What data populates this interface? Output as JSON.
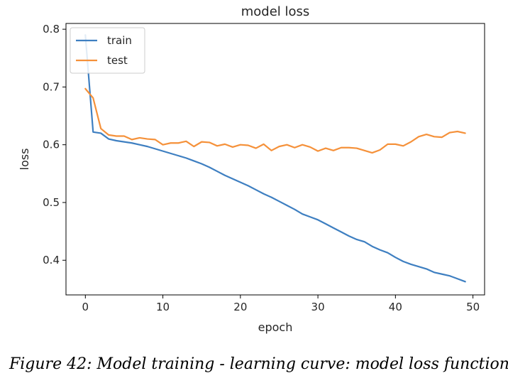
{
  "chart_data": {
    "type": "line",
    "title": "model loss",
    "xlabel": "epoch",
    "ylabel": "loss",
    "xlim": [
      -2.5,
      51.5
    ],
    "ylim": [
      0.34,
      0.81
    ],
    "xticks": [
      0,
      10,
      20,
      30,
      40,
      50
    ],
    "yticks": [
      0.4,
      0.5,
      0.6,
      0.7,
      0.8
    ],
    "xtick_labels": [
      "0",
      "10",
      "20",
      "30",
      "40",
      "50"
    ],
    "ytick_labels": [
      "0.4",
      "0.5",
      "0.6",
      "0.7",
      "0.8"
    ],
    "grid": false,
    "legend_position": "upper left",
    "x": [
      0,
      1,
      2,
      3,
      4,
      5,
      6,
      7,
      8,
      9,
      10,
      11,
      12,
      13,
      14,
      15,
      16,
      17,
      18,
      19,
      20,
      21,
      22,
      23,
      24,
      25,
      26,
      27,
      28,
      29,
      30,
      31,
      32,
      33,
      34,
      35,
      36,
      37,
      38,
      39,
      40,
      41,
      42,
      43,
      44,
      45,
      46,
      47,
      48,
      49
    ],
    "series": [
      {
        "name": "train",
        "color": "#3e7fc1",
        "values": [
          0.79,
          0.622,
          0.62,
          0.61,
          0.607,
          0.605,
          0.603,
          0.6,
          0.597,
          0.593,
          0.589,
          0.585,
          0.581,
          0.577,
          0.572,
          0.567,
          0.561,
          0.554,
          0.547,
          0.541,
          0.535,
          0.529,
          0.522,
          0.515,
          0.509,
          0.502,
          0.495,
          0.488,
          0.48,
          0.475,
          0.47,
          0.463,
          0.456,
          0.449,
          0.442,
          0.436,
          0.432,
          0.424,
          0.418,
          0.413,
          0.405,
          0.398,
          0.393,
          0.389,
          0.385,
          0.379,
          0.376,
          0.373,
          0.368,
          0.363
        ]
      },
      {
        "name": "test",
        "color": "#f5913a",
        "values": [
          0.697,
          0.681,
          0.628,
          0.617,
          0.615,
          0.615,
          0.609,
          0.612,
          0.61,
          0.609,
          0.6,
          0.603,
          0.603,
          0.606,
          0.597,
          0.605,
          0.604,
          0.598,
          0.601,
          0.596,
          0.6,
          0.599,
          0.594,
          0.601,
          0.59,
          0.597,
          0.6,
          0.595,
          0.6,
          0.596,
          0.589,
          0.594,
          0.59,
          0.595,
          0.595,
          0.594,
          0.59,
          0.586,
          0.591,
          0.601,
          0.601,
          0.598,
          0.605,
          0.614,
          0.618,
          0.614,
          0.613,
          0.621,
          0.623,
          0.62
        ]
      }
    ]
  },
  "caption": "Figure 42: Model training - learning curve: model loss function"
}
